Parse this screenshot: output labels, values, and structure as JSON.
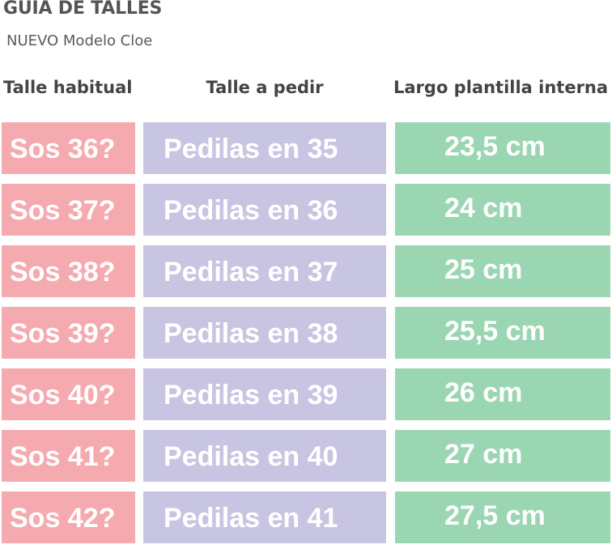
{
  "title": "GUIA DE TALLES",
  "subtitle": "NUEVO Modelo Cloe",
  "headers": [
    "Talle habitual",
    "Talle a pedir",
    "Largo plantilla interna"
  ],
  "rows": [
    [
      "Sos 36?",
      "Pedilas en 35",
      "23,5 cm"
    ],
    [
      "Sos 37?",
      "Pedilas en 36",
      "24 cm"
    ],
    [
      "Sos 38?",
      "Pedilas en 37",
      "25 cm"
    ],
    [
      "Sos 39?",
      "Pedilas en 38",
      "25,5 cm"
    ],
    [
      "Sos 40?",
      "Pedilas en 39",
      "26 cm"
    ],
    [
      "Sos 41?",
      "Pedilas en 40",
      "27 cm"
    ],
    [
      "Sos 42?",
      "Pedilas en 41",
      "27,5 cm"
    ]
  ],
  "colors": {
    "habitual": "#f5aab0",
    "pedir": "#c8c5e2",
    "plantilla": "#9bd6b2"
  }
}
